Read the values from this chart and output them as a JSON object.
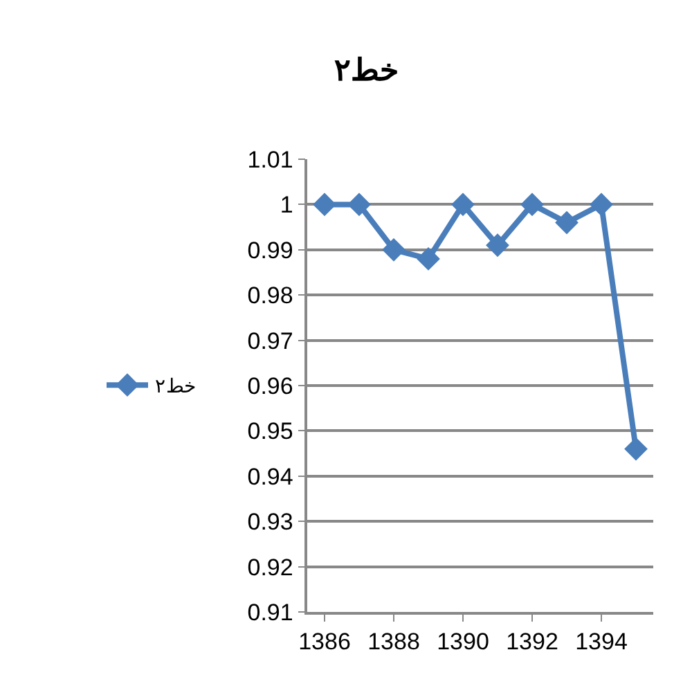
{
  "chart_data": {
    "type": "line",
    "title": "خط۲",
    "categories": [
      "1386",
      null,
      "1388",
      null,
      "1390",
      null,
      "1392",
      null,
      "1394",
      null
    ],
    "series": [
      {
        "name": "خط۲",
        "color": "#4a7ebb",
        "values": [
          1,
          1,
          0.99,
          0.988,
          1,
          0.991,
          1,
          0.996,
          1,
          0.946
        ]
      }
    ],
    "ylim": [
      0.91,
      1.01
    ],
    "yticks": [
      0.91,
      0.92,
      0.93,
      0.94,
      0.95,
      0.96,
      0.97,
      0.98,
      0.99,
      1,
      1.01
    ],
    "grid": "y",
    "legend": "left",
    "marker": "diamond",
    "line_style": "solid"
  }
}
